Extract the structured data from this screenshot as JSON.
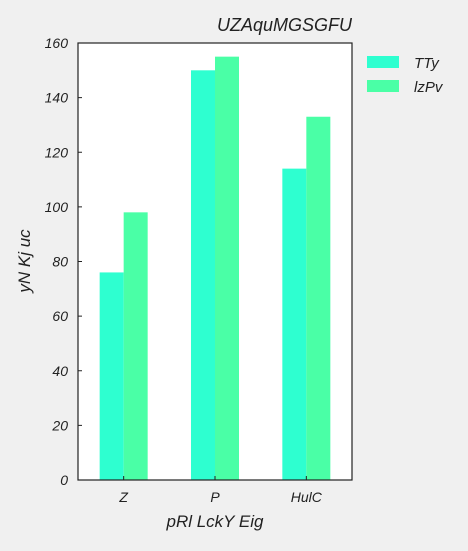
{
  "chart_data": {
    "type": "bar",
    "title": "UZAquMGSGFU",
    "xlabel": "pRl LckY Eig",
    "ylabel": "yN Kj uc",
    "categories": [
      "Z",
      "P",
      "HulC"
    ],
    "series": [
      {
        "name": "TTy",
        "values": [
          76,
          150,
          114
        ],
        "color": "#2effd0"
      },
      {
        "name": "lzPv",
        "values": [
          98,
          155,
          133
        ],
        "color": "#4affa6"
      }
    ],
    "ylim": [
      0,
      160
    ],
    "yticks": [
      0,
      20,
      40,
      60,
      80,
      100,
      120,
      140,
      160
    ],
    "grid": false,
    "legend_position": "outside-top-right"
  },
  "colors": {
    "background": "#f0f0f0",
    "plot_background": "#ffffff",
    "axis": "#222222"
  }
}
